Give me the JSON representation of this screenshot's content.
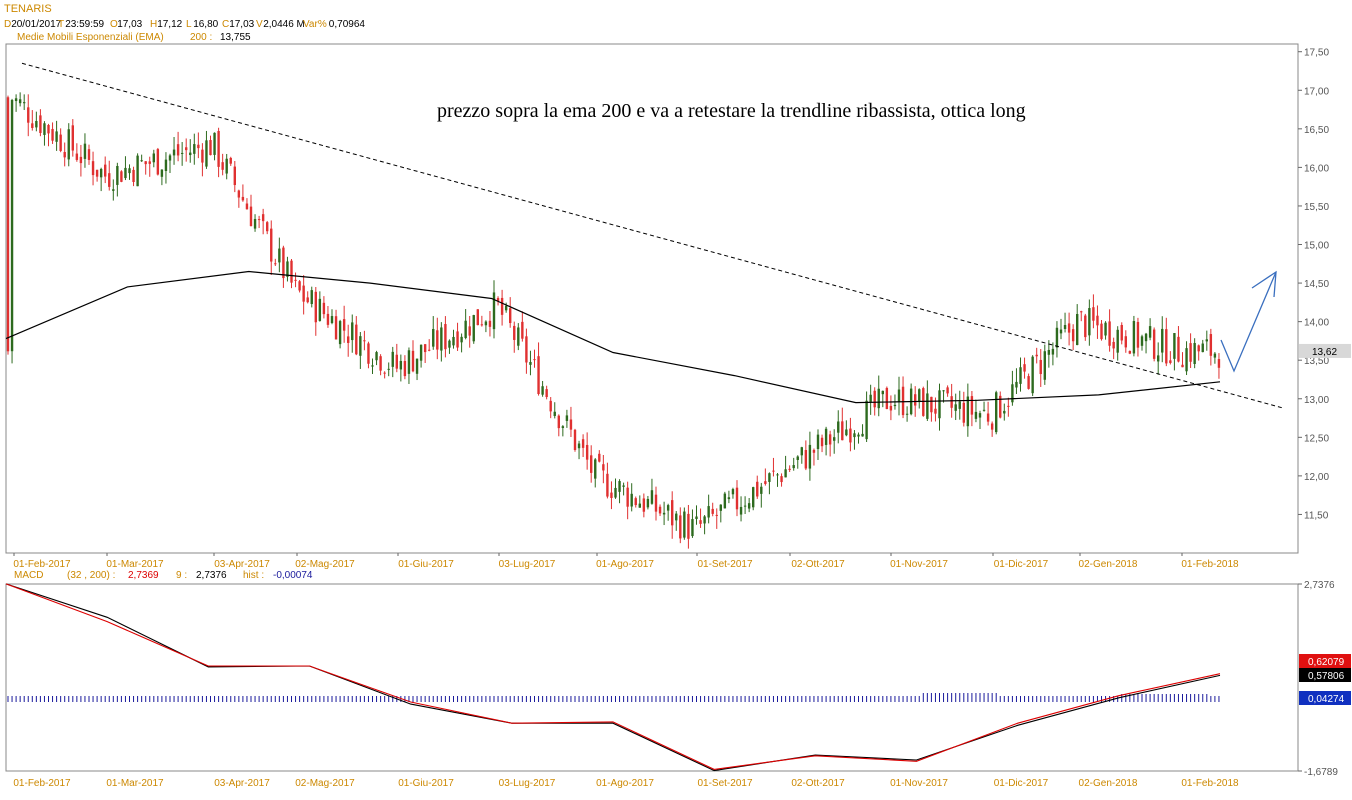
{
  "header": {
    "symbol": "TENARIS",
    "date_label": "D",
    "date_value": "20/01/2017",
    "time_label": "T",
    "time_value": "23:59:59",
    "open_label": "O",
    "open_value": "17,03",
    "high_label": "H",
    "high_value": "17,12",
    "low_label": "L",
    "low_value": "16,80",
    "close_label": "C",
    "close_value": "17,03",
    "volume_label": "V",
    "volume_value": "2,0446 M",
    "var_label": "Var%",
    "var_value": "0,70964"
  },
  "ema_legend": {
    "label": "Medie Mobili Esponenziali (EMA)",
    "period": "200 :",
    "value": "13,755"
  },
  "annotation": "prezzo sopra la ema 200 e va a retestare la trendline ribassista, ottica long",
  "price_tag": "13,62",
  "macd_legend": {
    "name": "MACD",
    "params": "(32 , 200) :",
    "macd_value": "2,7369",
    "signal_label": "9 :",
    "signal_value": "2,7376",
    "hist_label": "hist :",
    "hist_value": "-0,00074"
  },
  "macd_tags": {
    "red": "0,62079",
    "black": "0,57806",
    "blue": "0,04274"
  },
  "colors": {
    "label_orange": "#cc8800",
    "bull": "#2d6a1e",
    "bear": "#e03030",
    "ema": "#000000",
    "trendline": "#000000",
    "arrow": "#3a6fbf",
    "macd_red": "#dd0000",
    "macd_black": "#000000",
    "hist_blue": "#1a1a9c",
    "tag_red_bg": "#e01010",
    "tag_black_bg": "#000000",
    "tag_blue_bg": "#1030c0",
    "frame": "#888888"
  },
  "chart_data": [
    {
      "type": "candlestick",
      "title": "TENARIS",
      "y_axis_ticks": [
        "11,50",
        "12,00",
        "12,50",
        "13,00",
        "13,50",
        "14,00",
        "14,50",
        "15,00",
        "15,50",
        "16,00",
        "16,50",
        "17,00",
        "17,50"
      ],
      "ylim": [
        11.0,
        17.6
      ],
      "x_axis_ticks": [
        "01-Feb-2017",
        "01-Mar-2017",
        "03-Apr-2017",
        "02-Mag-2017",
        "01-Giu-2017",
        "03-Lug-2017",
        "01-Ago-2017",
        "01-Set-2017",
        "02-Ott-2017",
        "01-Nov-2017",
        "01-Dic-2017",
        "02-Gen-2018",
        "01-Feb-2018"
      ],
      "close_anchors": [
        {
          "x": "01-Feb-2017",
          "y": 16.9
        },
        {
          "x": "01-Mar-2017",
          "y": 15.9
        },
        {
          "x": "03-Apr-2017",
          "y": 16.3
        },
        {
          "x": "02-Mag-2017",
          "y": 14.4
        },
        {
          "x": "01-Giu-2017",
          "y": 13.4
        },
        {
          "x": "03-Lug-2017",
          "y": 14.2
        },
        {
          "x": "01-Ago-2017",
          "y": 12.0
        },
        {
          "x": "01-Set-2017",
          "y": 11.3
        },
        {
          "x": "02-Ott-2017",
          "y": 12.1
        },
        {
          "x": "01-Nov-2017",
          "y": 13.0
        },
        {
          "x": "01-Dic-2017",
          "y": 12.8
        },
        {
          "x": "02-Gen-2018",
          "y": 14.0
        },
        {
          "x": "01-Feb-2018",
          "y": 13.62
        }
      ],
      "series": [
        {
          "name": "EMA 200",
          "values": [
            13.78,
            14.45,
            14.65,
            14.5,
            14.3,
            13.6,
            13.3,
            12.95,
            12.98,
            13.05,
            13.22
          ]
        }
      ],
      "trendline": [
        [
          17.35,
          "01-Feb-2017"
        ],
        [
          12.88,
          "01-Feb-2018"
        ]
      ]
    },
    {
      "type": "line",
      "title": "MACD",
      "y_axis_ticks": [
        "2,7376",
        "-1,6789"
      ],
      "ylim": [
        -1.6789,
        2.7376
      ],
      "series": [
        {
          "name": "MACD",
          "values": [
            2.74,
            1.95,
            0.78,
            0.8,
            -0.1,
            -0.55,
            -0.55,
            -1.67,
            -1.3,
            -1.42,
            -0.6,
            0.05,
            0.58
          ]
        },
        {
          "name": "Signal",
          "values": [
            2.74,
            1.85,
            0.8,
            0.8,
            -0.05,
            -0.55,
            -0.52,
            -1.64,
            -1.32,
            -1.45,
            -0.55,
            0.1,
            0.62
          ]
        }
      ]
    }
  ]
}
